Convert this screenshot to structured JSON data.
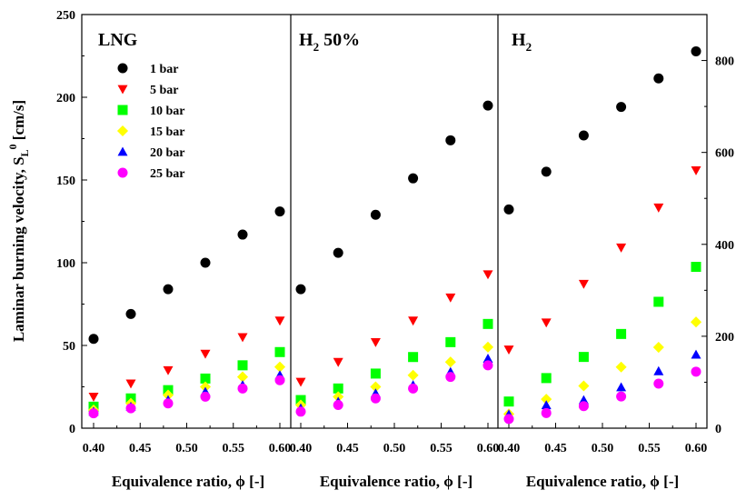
{
  "chart_data": [
    {
      "type": "scatter",
      "title": "LNG",
      "xlabel": "Equivalence ratio,  ϕ [-]",
      "ylabel": "Laminar burning velocity, S_L^0 [cm/s]",
      "ylabel_main": "Laminar burning velocity, S",
      "ylabel_sub": "L",
      "ylabel_sup": "0",
      "ylabel_tail": " [cm/s]",
      "xlim": [
        0.4,
        0.6
      ],
      "ylim": [
        0,
        250
      ],
      "x_ticks": [
        "0.40",
        "0.45",
        "0.50",
        "0.55",
        "0.60"
      ],
      "y_ticks": [
        "0",
        "50",
        "100",
        "150",
        "200",
        "250"
      ],
      "x": [
        0.4,
        0.44,
        0.48,
        0.52,
        0.56,
        0.6
      ],
      "series": [
        {
          "name": "1 bar",
          "values": [
            54,
            69,
            84,
            100,
            117,
            131
          ]
        },
        {
          "name": "5 bar",
          "values": [
            19,
            27,
            35,
            45,
            55,
            65
          ]
        },
        {
          "name": "10 bar",
          "values": [
            13,
            18,
            23,
            30,
            38,
            46
          ]
        },
        {
          "name": "15 bar",
          "values": [
            11,
            15,
            20,
            25,
            31,
            37
          ]
        },
        {
          "name": "20 bar",
          "values": [
            10,
            13,
            17,
            22,
            26,
            32
          ]
        },
        {
          "name": "25 bar",
          "values": [
            9,
            12,
            15,
            19,
            24,
            29
          ]
        }
      ],
      "legend_position": "upper-left"
    },
    {
      "type": "scatter",
      "title": "H2 50%",
      "title_main": "H",
      "title_sub": "2",
      "title_tail": " 50%",
      "xlabel": "Equivalence ratio,  ϕ [-]",
      "xlim": [
        0.4,
        0.6
      ],
      "ylim": [
        0,
        250
      ],
      "x_ticks": [
        "0.40",
        "0.45",
        "0.50",
        "0.55",
        "0.60"
      ],
      "x": [
        0.4,
        0.44,
        0.48,
        0.52,
        0.56,
        0.6
      ],
      "series": [
        {
          "name": "1 bar",
          "values": [
            84,
            106,
            129,
            151,
            174,
            195
          ]
        },
        {
          "name": "5 bar",
          "values": [
            28,
            40,
            52,
            65,
            79,
            93
          ]
        },
        {
          "name": "10 bar",
          "values": [
            17,
            24,
            33,
            43,
            52,
            63
          ]
        },
        {
          "name": "15 bar",
          "values": [
            14,
            19,
            25,
            32,
            40,
            49
          ]
        },
        {
          "name": "20 bar",
          "values": [
            12,
            16,
            21,
            26,
            34,
            42
          ]
        },
        {
          "name": "25 bar",
          "values": [
            10,
            14,
            18,
            24,
            31,
            38
          ]
        }
      ]
    },
    {
      "type": "scatter",
      "title": "H2",
      "title_main": "H",
      "title_sub": "2",
      "xlabel": "Equivalence ratio,  ϕ [-]",
      "xlim": [
        0.4,
        0.6
      ],
      "ylim": [
        0,
        900
      ],
      "x_ticks": [
        "0.40",
        "0.45",
        "0.50",
        "0.55",
        "0.60"
      ],
      "y_ticks": [
        "0",
        "200",
        "400",
        "600",
        "800"
      ],
      "y_axis_side": "right",
      "x": [
        0.4,
        0.44,
        0.48,
        0.52,
        0.56,
        0.6
      ],
      "series": [
        {
          "name": "1 bar",
          "values": [
            476,
            558,
            637,
            699,
            761,
            820
          ]
        },
        {
          "name": "5 bar",
          "values": [
            171,
            230,
            314,
            393,
            480,
            561
          ]
        },
        {
          "name": "10 bar",
          "values": [
            58,
            109,
            155,
            205,
            275,
            351
          ]
        },
        {
          "name": "15 bar",
          "values": [
            31,
            63,
            92,
            133,
            176,
            231
          ]
        },
        {
          "name": "20 bar",
          "values": [
            30,
            50,
            61,
            89,
            124,
            160
          ]
        },
        {
          "name": "25 bar",
          "values": [
            20,
            33,
            48,
            69,
            97,
            123
          ]
        }
      ]
    }
  ],
  "legend": [
    {
      "name": "1 bar",
      "marker": "circle",
      "color": "#000000"
    },
    {
      "name": "5 bar",
      "marker": "triangle-down",
      "color": "#ff0000"
    },
    {
      "name": "10 bar",
      "marker": "square",
      "color": "#00ff00"
    },
    {
      "name": "15 bar",
      "marker": "diamond",
      "color": "#ffff00"
    },
    {
      "name": "20 bar",
      "marker": "triangle-up",
      "color": "#0000ff"
    },
    {
      "name": "25 bar",
      "marker": "circle",
      "color": "#ff00ff"
    }
  ]
}
